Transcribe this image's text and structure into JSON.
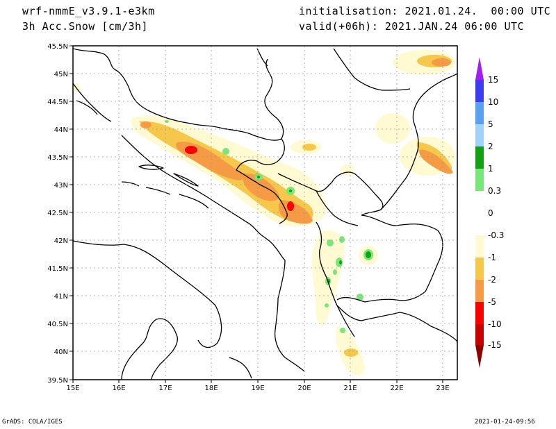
{
  "header": {
    "model": "wrf-nmmE_v3.9.1-e3km",
    "field": "3h Acc.Snow [cm/3h]",
    "init": "initialisation: 2021.01.24.  00:00 UTC",
    "valid": "valid(+06h): 2021.JAN.24 06:00 UTC"
  },
  "footer": {
    "credit": "GrADS: COLA/IGES",
    "timestamp": "2021-01-24-09:56"
  },
  "map": {
    "lat_ticks": [
      "45.5N",
      "45N",
      "44.5N",
      "44N",
      "43.5N",
      "43N",
      "42.5N",
      "42N",
      "41.5N",
      "41N",
      "40.5N",
      "40N",
      "39.5N"
    ],
    "lon_ticks": [
      "15E",
      "16E",
      "17E",
      "18E",
      "19E",
      "20E",
      "21E",
      "22E",
      "23E"
    ],
    "lat_range": [
      39.5,
      45.5
    ],
    "lon_range": [
      15.0,
      23.3
    ]
  },
  "legend": {
    "labels": [
      "15",
      "10",
      "5",
      "2",
      "1",
      "0.3",
      "0",
      "-0.3",
      "-1",
      "-2",
      "-5",
      "-10",
      "-15"
    ],
    "colors": [
      "#a020f0",
      "#3c3cf0",
      "#5aa0f0",
      "#a0d2fa",
      "#14a014",
      "#78e678",
      "#ffffff",
      "#fffad2",
      "#f5c84b",
      "#f59b46",
      "#fa0000",
      "#c80000",
      "#8c0000"
    ]
  }
}
